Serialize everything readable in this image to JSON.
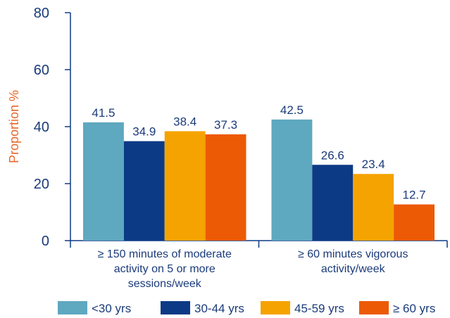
{
  "chart_data": {
    "type": "bar",
    "ylabel": "Proportion %",
    "ylim": [
      0,
      80
    ],
    "yticks": [
      0,
      20,
      40,
      60,
      80
    ],
    "grid": false,
    "legend_position": "bottom",
    "categories": [
      [
        "≥ 150 minutes of moderate",
        "activity on 5 or more",
        "sessions/week"
      ],
      [
        "≥ 60 minutes vigorous",
        "activity/week"
      ]
    ],
    "series": [
      {
        "name": "<30 yrs",
        "color": "#5ea8c0",
        "values": [
          41.5,
          42.5
        ],
        "labels": [
          "41.5",
          "42.5"
        ]
      },
      {
        "name": "30-44 yrs",
        "color": "#0d3a85",
        "values": [
          34.9,
          26.6
        ],
        "labels": [
          "34.9",
          "26.6"
        ]
      },
      {
        "name": "45-59 yrs",
        "color": "#f5a300",
        "values": [
          38.4,
          23.4
        ],
        "labels": [
          "38.4",
          "23.4"
        ]
      },
      {
        "name": "≥ 60 yrs",
        "color": "#ec5a05",
        "values": [
          37.3,
          12.7
        ],
        "labels": [
          "37.3",
          "12.7"
        ]
      }
    ],
    "axis_color": "#0d3a85"
  }
}
